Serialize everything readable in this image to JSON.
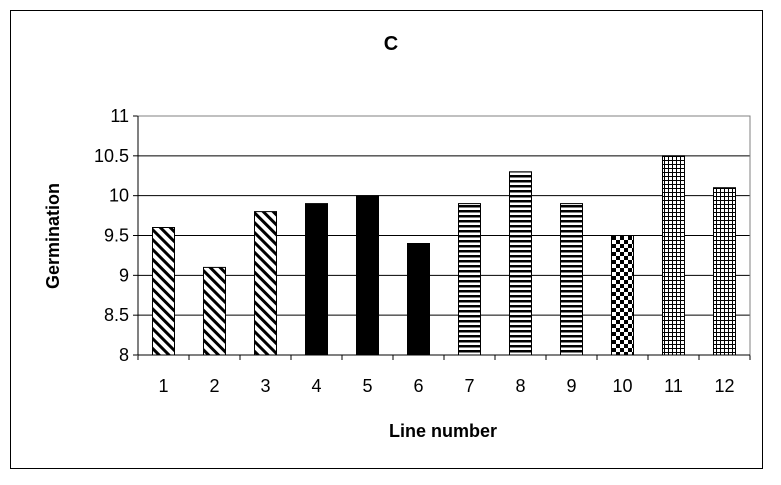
{
  "chart_data": {
    "type": "bar",
    "title": "C",
    "xlabel": "Line number",
    "ylabel": "Germination",
    "categories": [
      "1",
      "2",
      "3",
      "4",
      "5",
      "6",
      "7",
      "8",
      "9",
      "10",
      "11",
      "12"
    ],
    "values": [
      9.6,
      9.1,
      9.8,
      9.9,
      10.0,
      9.4,
      9.9,
      10.3,
      9.9,
      9.5,
      10.5,
      10.1
    ],
    "patterns": [
      "diag",
      "diag",
      "diag",
      "solid",
      "solid",
      "solid",
      "hstripe",
      "hstripe",
      "hstripe",
      "checker",
      "grid",
      "grid"
    ],
    "ylim": [
      8,
      11
    ],
    "yticks": [
      "8",
      "8.5",
      "9",
      "9.5",
      "10",
      "10.5",
      "11"
    ],
    "grid": true,
    "legend": "none",
    "colors": {
      "bar": "#000000",
      "background": "#ffffff",
      "gridline": "#000000"
    }
  }
}
